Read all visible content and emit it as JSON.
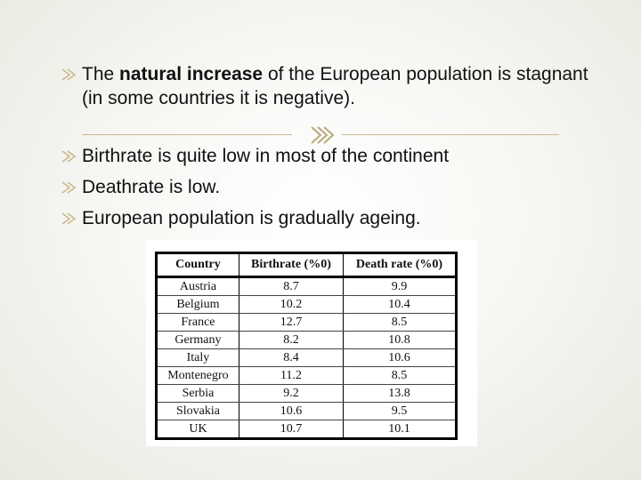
{
  "bullets": [
    {
      "pre": "The ",
      "bold": "natural increase",
      "post": " of the European population is stagnant (in some countries it is negative)."
    },
    {
      "text": "Birthrate is quite low in most of the continent"
    },
    {
      "text": "Deathrate is low."
    },
    {
      "text": "European population is gradually ageing."
    }
  ],
  "bullet_icon": "arrow-bullet-icon",
  "divider_icon": "triple-arrow-icon",
  "accent_color": "#c9b98d",
  "table": {
    "headers": [
      "Country",
      "Birthrate (%0)",
      "Death rate (%0)"
    ],
    "rows": [
      [
        "Austria",
        "8.7",
        "9.9"
      ],
      [
        "Belgium",
        "10.2",
        "10.4"
      ],
      [
        "France",
        "12.7",
        "8.5"
      ],
      [
        "Germany",
        "8.2",
        "10.8"
      ],
      [
        "Italy",
        "8.4",
        "10.6"
      ],
      [
        "Montenegro",
        "11.2",
        "8.5"
      ],
      [
        "Serbia",
        "9.2",
        "13.8"
      ],
      [
        "Slovakia",
        "10.6",
        "9.5"
      ],
      [
        "UK",
        "10.7",
        "10.1"
      ]
    ]
  }
}
